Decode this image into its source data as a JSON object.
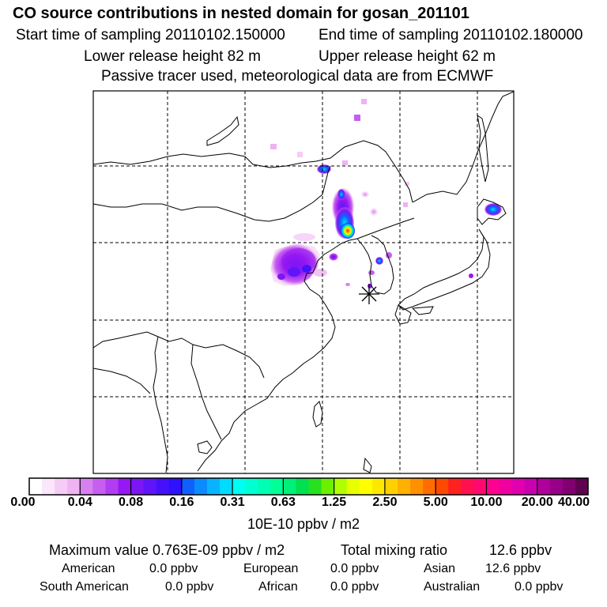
{
  "header": {
    "title": "CO  source contributions in nested domain for gosan_201101",
    "start_label": "Start time of sampling 20110102.150000",
    "end_label": "End time of sampling 20110102.180000",
    "lower_label": "Lower release height   82 m",
    "upper_label": "Upper release height   62 m",
    "tracer_note": "Passive tracer used, meteorological data are from ECMWF"
  },
  "colorbar": {
    "colors": [
      "#ffffff",
      "#fbe6fb",
      "#f5ccf5",
      "#eeb3f0",
      "#d980f0",
      "#c65ef0",
      "#b23cf2",
      "#9618f2",
      "#7b16f5",
      "#6015f8",
      "#4610fc",
      "#2f10ff",
      "#1060ff",
      "#0a8cff",
      "#08b4ff",
      "#00dcff",
      "#00fff0",
      "#00ffd2",
      "#00ffb4",
      "#00ff96",
      "#00f078",
      "#00e050",
      "#28e020",
      "#6cf000",
      "#b0ff00",
      "#e8ff00",
      "#ffff00",
      "#ffe800",
      "#ffd000",
      "#ffb000",
      "#ff9000",
      "#ff6c00",
      "#ff4800",
      "#ff2020",
      "#ff1050",
      "#ff0870",
      "#ff0090",
      "#f000a0",
      "#e000b0",
      "#c800b0",
      "#b0009c",
      "#980088",
      "#800070",
      "#600050"
    ],
    "tick_labels": [
      "0.00",
      "0.04",
      "0.08",
      "0.16",
      "0.31",
      "0.63",
      "1.25",
      "2.50",
      "5.00",
      "10.00",
      "20.00",
      "40.00"
    ],
    "unit_label": "10E-10 ppbv / m2"
  },
  "summary": {
    "max_label": "Maximum value  0.763E-09 ppbv / m2",
    "total_label": "Total mixing ratio",
    "total_value": "12.6 ppbv"
  },
  "regions": [
    {
      "name": "American",
      "value": "0.0 ppbv"
    },
    {
      "name": "European",
      "value": "0.0 ppbv"
    },
    {
      "name": "Asian",
      "value": "12.6 ppbv"
    },
    {
      "name": "South American",
      "value": "0.0 ppbv"
    },
    {
      "name": "African",
      "value": "0.0 ppbv"
    },
    {
      "name": "Australian",
      "value": "0.0 ppbv"
    }
  ]
}
